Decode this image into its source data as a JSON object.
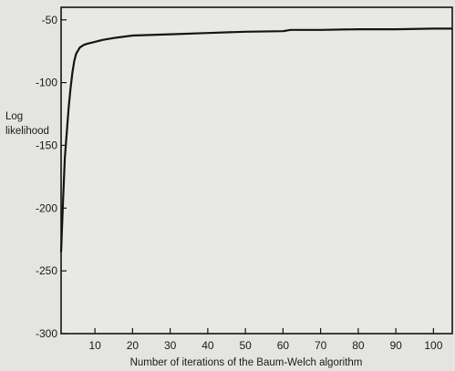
{
  "chart_data": {
    "type": "line",
    "title": "",
    "xlabel": "Number of iterations of the Baum-Welch algorithm",
    "ylabel": [
      "Log",
      "likelihood"
    ],
    "xlim": [
      1,
      105
    ],
    "ylim": [
      -300,
      -40
    ],
    "xticks": [
      10,
      20,
      30,
      40,
      50,
      60,
      70,
      80,
      90,
      100
    ],
    "yticks": [
      -50,
      -100,
      -150,
      -200,
      -250,
      -300
    ],
    "grid": false,
    "legend": "none",
    "colors": {
      "line": "#141414",
      "axis": "#141414",
      "background": "#e8e8e6"
    },
    "series": [
      {
        "x": [
          1,
          1.5,
          2,
          2.5,
          3,
          3.5,
          4,
          4.5,
          5,
          6,
          7,
          8,
          10,
          12,
          15,
          20,
          30,
          40,
          50,
          60,
          62,
          70,
          80,
          90,
          100,
          105
        ],
        "y": [
          -235,
          -195,
          -160,
          -140,
          -120,
          -105,
          -92,
          -83,
          -77,
          -72,
          -70,
          -69,
          -67.5,
          -66,
          -64.5,
          -62.5,
          -61.5,
          -60.5,
          -59.5,
          -59,
          -58,
          -58,
          -57.5,
          -57.5,
          -57,
          -57
        ]
      }
    ]
  }
}
